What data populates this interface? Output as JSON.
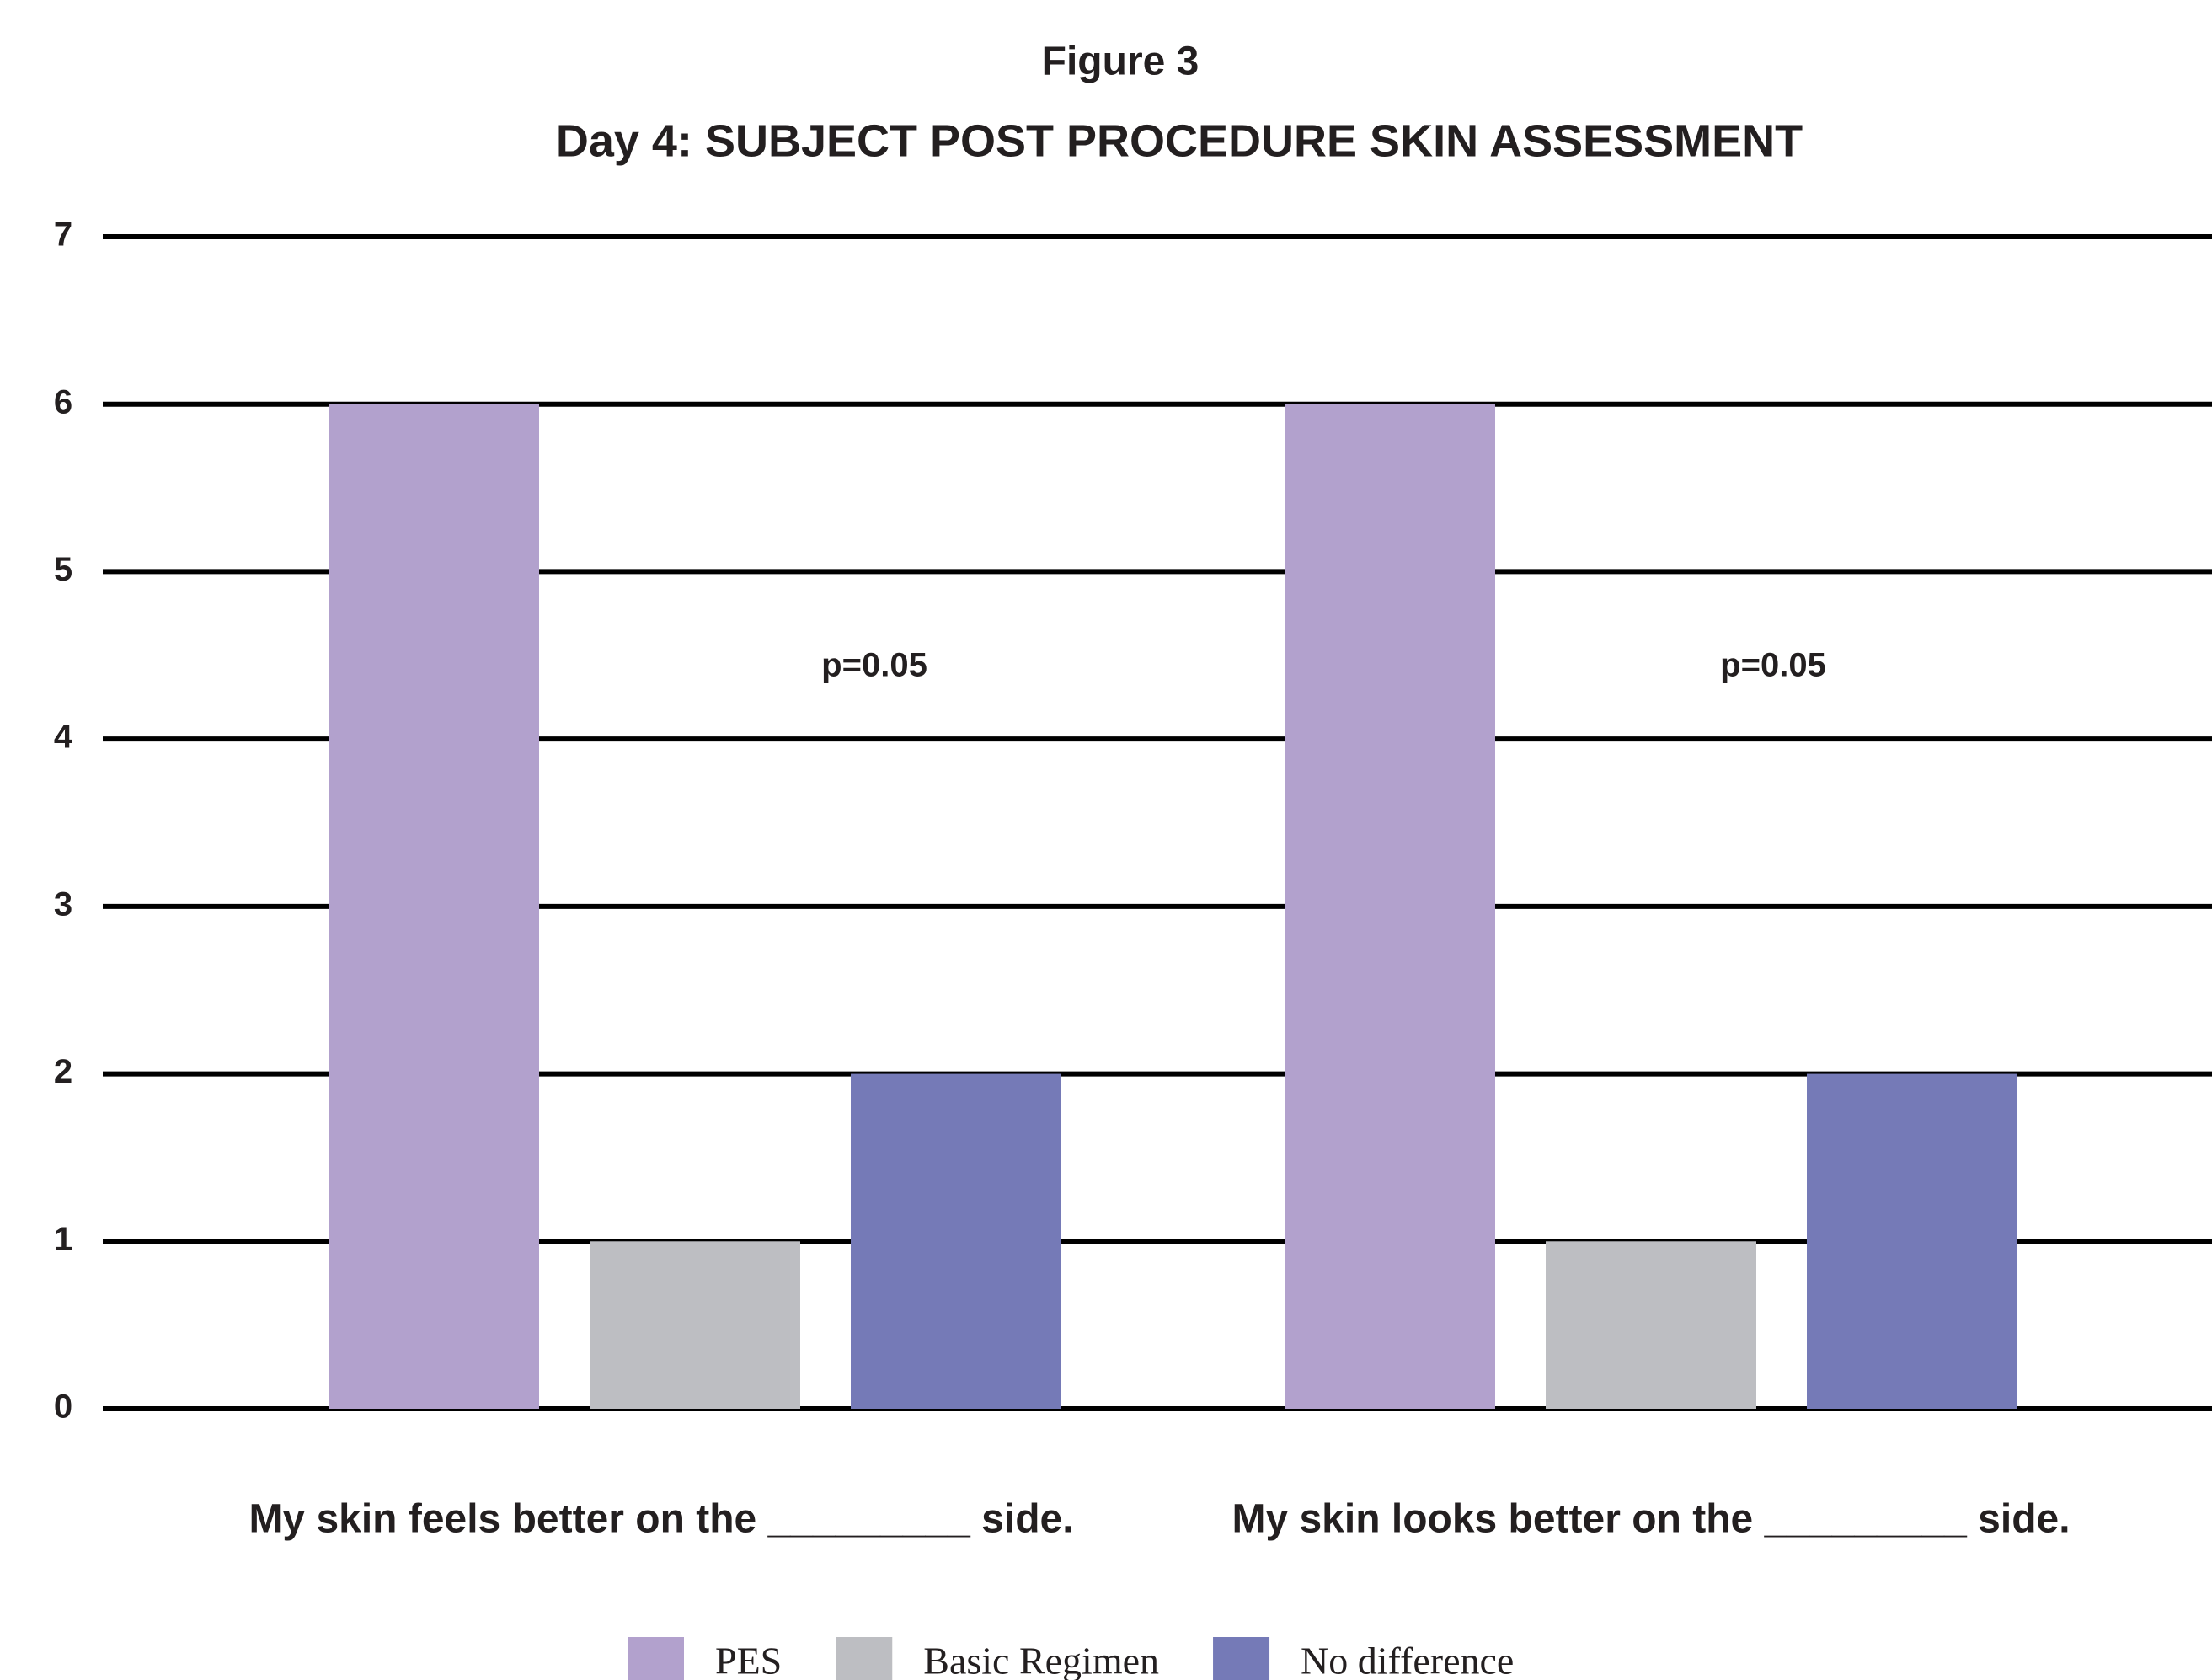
{
  "chart_data": {
    "type": "bar",
    "title": "Figure 3",
    "subtitle": "Day 4: SUBJECT POST PROCEDURE SKIN ASSESSMENT",
    "categories": [
      "My skin feels better on the _________ side.",
      "My skin looks better on the _________ side."
    ],
    "series": [
      {
        "name": "PES",
        "color": "#b2a1cd",
        "values": [
          6,
          6
        ]
      },
      {
        "name": "Basic Regimen",
        "color": "#bdbec2",
        "values": [
          1,
          1
        ]
      },
      {
        "name": "No difference",
        "color": "#757ab7",
        "values": [
          2,
          2
        ]
      }
    ],
    "annotations": [
      "p=0.05",
      "p=0.05"
    ],
    "ylim": [
      0,
      7
    ],
    "yticks": [
      0,
      1,
      2,
      3,
      4,
      5,
      6,
      7
    ],
    "grid": true,
    "legend": "bottom"
  }
}
